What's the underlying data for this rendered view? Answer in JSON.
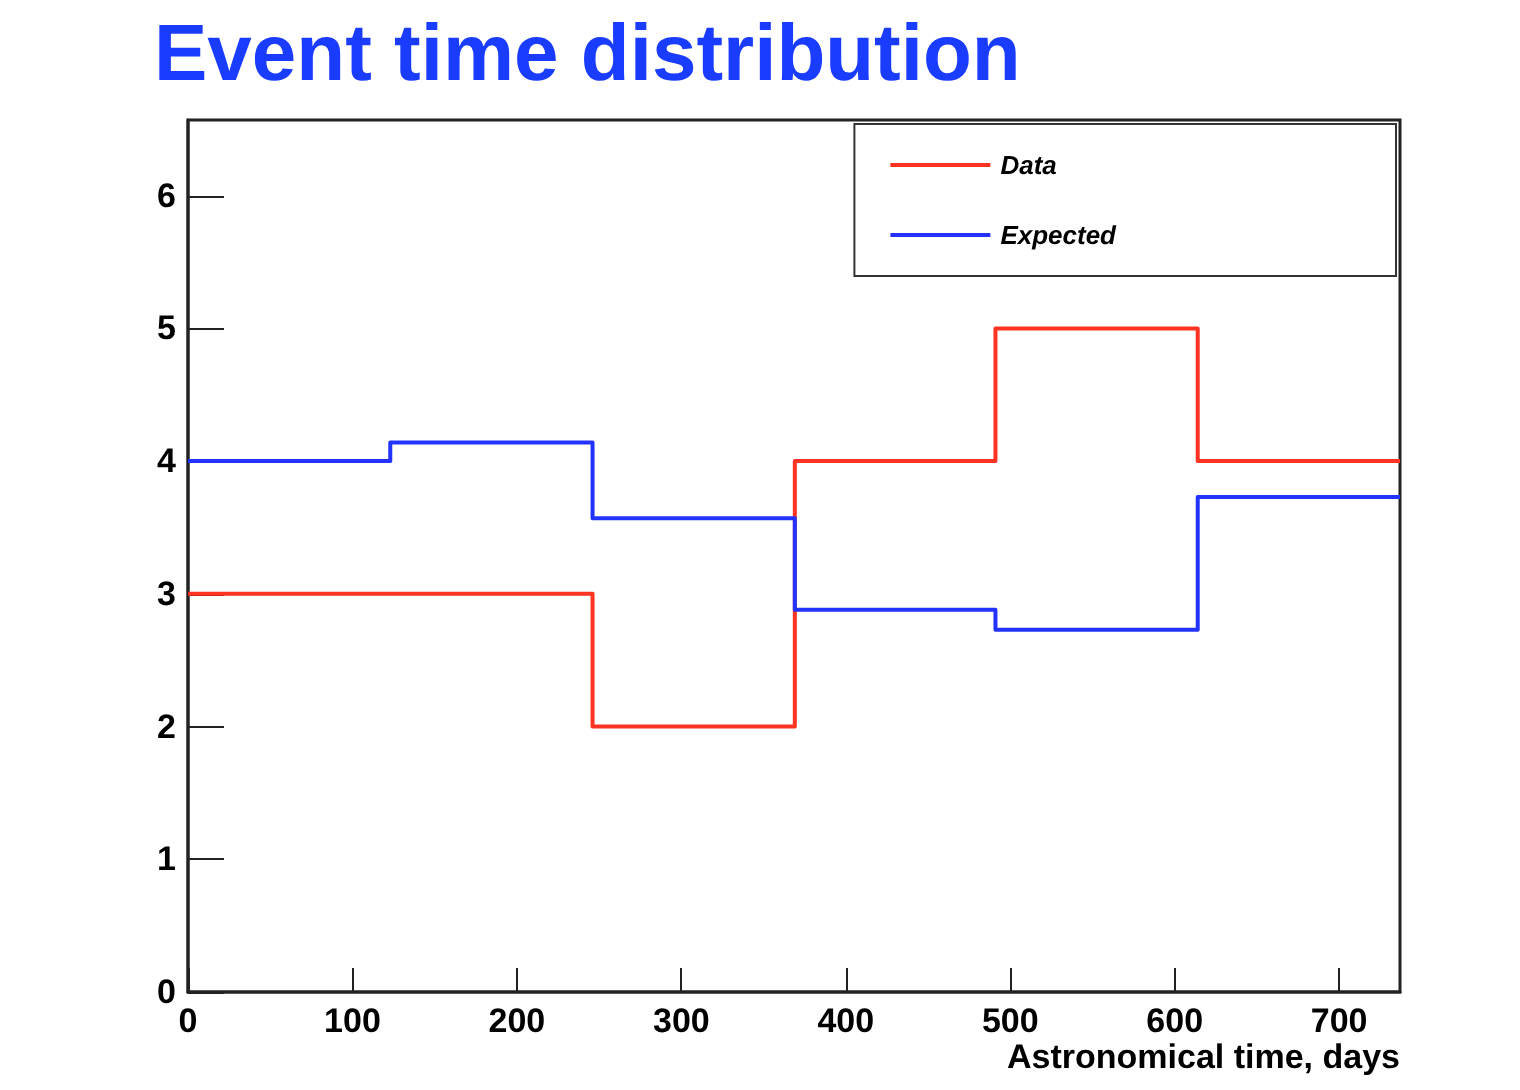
{
  "chart_data": {
    "type": "histogram",
    "title": "Event time distribution",
    "xlabel": "Astronomical time, days",
    "bins": [
      0,
      123,
      246,
      369,
      491,
      614,
      737
    ],
    "series": [
      {
        "name": "Data",
        "color": "#ff3322",
        "values": [
          3,
          3,
          2,
          4,
          5,
          4
        ]
      },
      {
        "name": "Expected",
        "color": "#2233ff",
        "values": [
          4.0,
          4.14,
          3.57,
          2.88,
          2.73,
          3.73
        ]
      }
    ],
    "xlim": [
      0,
      737
    ],
    "xticks": [
      0,
      100,
      200,
      300,
      400,
      500,
      600,
      700
    ],
    "ylim": [
      0,
      6.57
    ],
    "yticks": [
      0,
      1,
      2,
      3,
      4,
      5,
      6
    ],
    "grid": false,
    "legend": "top right"
  }
}
